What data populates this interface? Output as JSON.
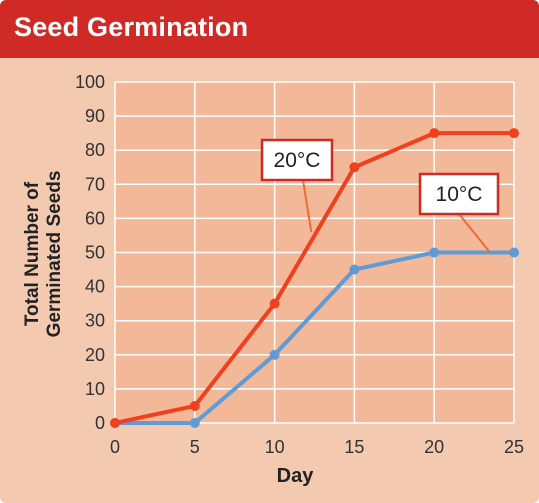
{
  "title": "Seed Germination",
  "colors": {
    "header": "#cf2a26",
    "background": "#f3c9b0",
    "series_20c": "#f0401e",
    "series_10c": "#5f9bd6"
  },
  "chart_data": {
    "type": "line",
    "title": "Seed Germination",
    "xlabel": "Day",
    "ylabel_lines": [
      "Total Number of",
      "Germinated Seeds"
    ],
    "xlim": [
      0,
      25
    ],
    "ylim": [
      0,
      100
    ],
    "x_ticks": [
      "0",
      "5",
      "10",
      "15",
      "20",
      "25"
    ],
    "y_ticks": [
      "0",
      "10",
      "20",
      "30",
      "40",
      "50",
      "60",
      "70",
      "80",
      "90",
      "100"
    ],
    "grid": true,
    "x": [
      0,
      5,
      10,
      15,
      20,
      25
    ],
    "series": [
      {
        "name": "20°C",
        "values": [
          0,
          5,
          35,
          75,
          85,
          85
        ],
        "color": "#f0401e"
      },
      {
        "name": "10°C",
        "values": [
          0,
          0,
          20,
          45,
          50,
          50
        ],
        "color": "#5f9bd6"
      }
    ]
  }
}
